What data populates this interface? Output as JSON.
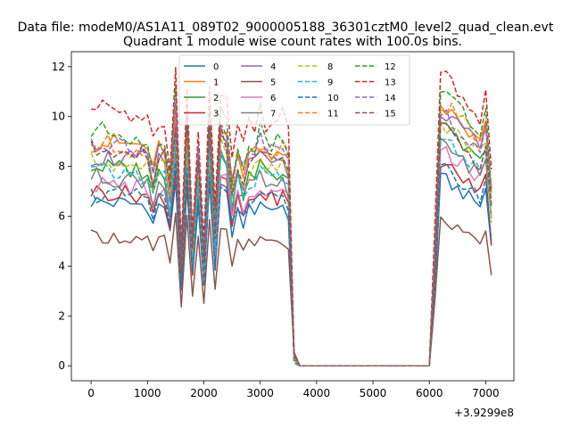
{
  "suptitle": "Data file: modeM0/AS1A11_089T02_9000005188_36301cztM0_level2_quad_clean.evt",
  "chart_data": {
    "type": "line",
    "title": "Quadrant 1 module wise count rates with 100.0s bins.",
    "xlabel": "",
    "ylabel": "",
    "x_offset_label": "+3.9299e8",
    "xlim": [
      -350,
      7500
    ],
    "ylim": [
      -0.6,
      12.6
    ],
    "xticks": [
      0,
      1000,
      2000,
      3000,
      4000,
      5000,
      6000,
      7000
    ],
    "xtick_labels": [
      "0",
      "1000",
      "2000",
      "3000",
      "4000",
      "5000",
      "6000",
      "7000"
    ],
    "yticks": [
      0,
      2,
      4,
      6,
      8,
      10,
      12
    ],
    "ytick_labels": [
      "0",
      "2",
      "4",
      "6",
      "8",
      "10",
      "12"
    ],
    "grid": false,
    "legend_position": "top-center",
    "legend_columns": 4,
    "series": [
      {
        "name": "0",
        "color": "#1f77b4",
        "dash": "solid",
        "base": 6.6,
        "post": 7.6
      },
      {
        "name": "1",
        "color": "#ff7f0e",
        "dash": "solid",
        "base": 9.0,
        "post": 10.5
      },
      {
        "name": "2",
        "color": "#2ca02c",
        "dash": "solid",
        "base": 8.0,
        "post": 9.6
      },
      {
        "name": "3",
        "color": "#d62728",
        "dash": "solid",
        "base": 7.0,
        "post": 8.2
      },
      {
        "name": "4",
        "color": "#9467bd",
        "dash": "solid",
        "base": 8.4,
        "post": 10.3
      },
      {
        "name": "5",
        "color": "#8c564b",
        "dash": "solid",
        "base": 5.2,
        "post": 5.9
      },
      {
        "name": "6",
        "color": "#e377c2",
        "dash": "solid",
        "base": 7.3,
        "post": 8.8
      },
      {
        "name": "7",
        "color": "#7f7f7f",
        "dash": "solid",
        "base": 7.6,
        "post": 9.0
      },
      {
        "name": "8",
        "color": "#bcbd22",
        "dash": "dashed",
        "base": 8.2,
        "post": 9.9
      },
      {
        "name": "9",
        "color": "#17becf",
        "dash": "dashed",
        "base": 7.8,
        "post": 9.2
      },
      {
        "name": "10",
        "color": "#1f77b4",
        "dash": "dashed",
        "base": 6.9,
        "post": 8.0
      },
      {
        "name": "11",
        "color": "#ff7f0e",
        "dash": "dashed",
        "base": 8.9,
        "post": 10.6
      },
      {
        "name": "12",
        "color": "#2ca02c",
        "dash": "dashed",
        "base": 9.4,
        "post": 11.1
      },
      {
        "name": "13",
        "color": "#d62728",
        "dash": "dashed",
        "base": 10.3,
        "post": 11.8
      },
      {
        "name": "14",
        "color": "#9467bd",
        "dash": "dashed",
        "base": 9.0,
        "post": 10.2
      },
      {
        "name": "15",
        "color": "#8c564b",
        "dash": "dashed",
        "base": 8.6,
        "post": 9.6
      }
    ]
  }
}
